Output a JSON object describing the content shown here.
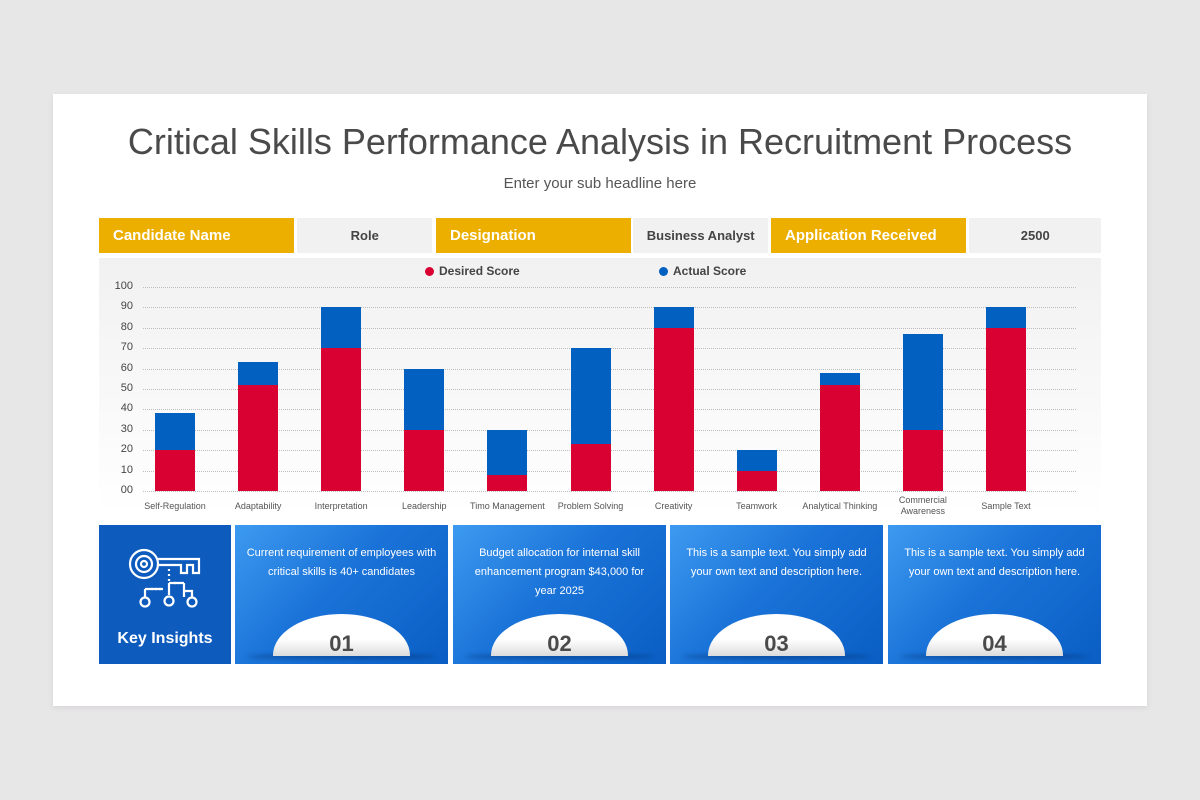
{
  "header": {
    "title": "Critical Skills Performance Analysis in Recruitment Process",
    "subtitle": "Enter your sub headline here"
  },
  "info_bar": [
    {
      "label": "Candidate Name",
      "value": "Role"
    },
    {
      "label": "Designation",
      "value": "Business Analyst"
    },
    {
      "label": "Application Received",
      "value": "2500"
    }
  ],
  "colors": {
    "desired": "#d90032",
    "actual": "#0160c0",
    "accent_yellow": "#ecaf00",
    "card_blue": "#0d5bbd"
  },
  "chart_data": {
    "type": "bar",
    "stacked": true,
    "title": "",
    "xlabel": "",
    "ylabel": "",
    "ylim": [
      0,
      100
    ],
    "y_ticks": [
      "00",
      "10",
      "20",
      "30",
      "40",
      "50",
      "60",
      "70",
      "80",
      "90",
      "100"
    ],
    "grid": true,
    "legend_position": "top",
    "categories": [
      "Self-Regulation",
      "Adaptability",
      "Interpretation",
      "Leadership",
      "Timo Management",
      "Problem Solving",
      "Creativity",
      "Teamwork",
      "Analytical Thinking",
      "Commercial Awareness",
      "Sample Text"
    ],
    "series": [
      {
        "name": "Desired Score",
        "color": "#d90032",
        "values": [
          20,
          52,
          70,
          30,
          8,
          23,
          80,
          10,
          52,
          30,
          80
        ]
      },
      {
        "name": "Actual Score",
        "color": "#0160c0",
        "values": [
          18,
          11,
          20,
          30,
          22,
          47,
          10,
          10,
          6,
          47,
          10
        ]
      }
    ]
  },
  "insights": {
    "heading": "Key Insights",
    "icon": "key-circuit-icon",
    "cards": [
      {
        "number": "01",
        "text": "Current requirement of employees with critical skills is 40+ candidates"
      },
      {
        "number": "02",
        "text": "Budget allocation for internal skill enhancement program $43,000 for year 2025"
      },
      {
        "number": "03",
        "text": "This is a sample text. You simply add your own text and description here."
      },
      {
        "number": "04",
        "text": "This is a sample text. You simply add your own text and description here."
      }
    ]
  }
}
